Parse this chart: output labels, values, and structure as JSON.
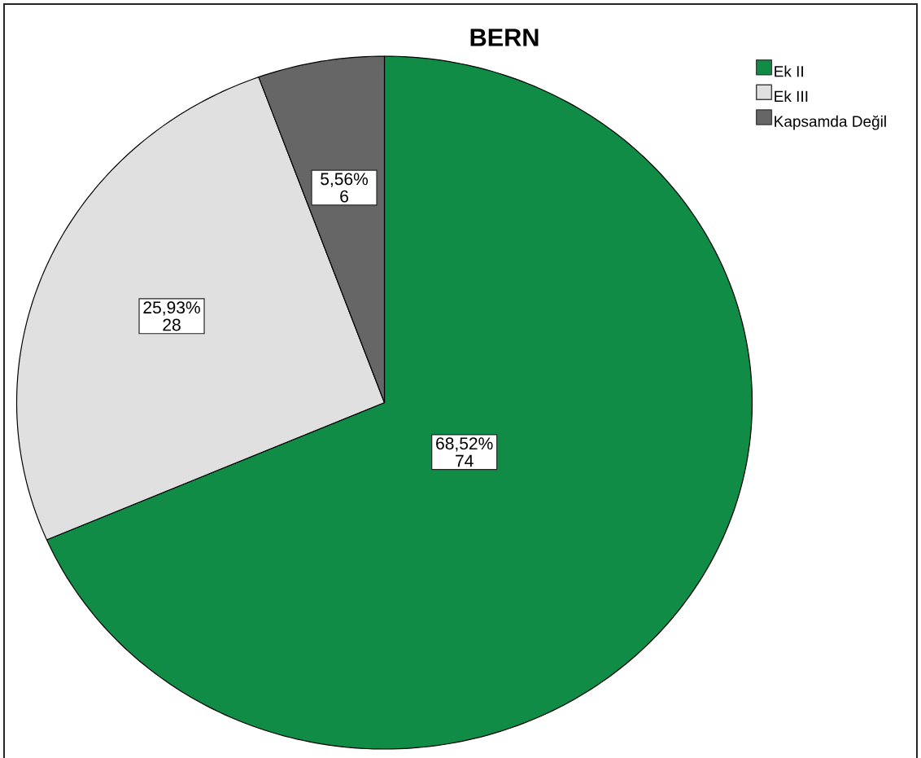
{
  "chart_data": {
    "type": "pie",
    "title": "BERN",
    "categories": [
      "Ek II",
      "Ek III",
      "Kapsamda Değil"
    ],
    "values": [
      74,
      28,
      6
    ],
    "value_labels": [
      "68,52% 74",
      "25,93% 28",
      "5,56% 6"
    ],
    "colors": [
      "#118c47",
      "#e0e0e0",
      "#666666"
    ],
    "legend": "top right"
  }
}
